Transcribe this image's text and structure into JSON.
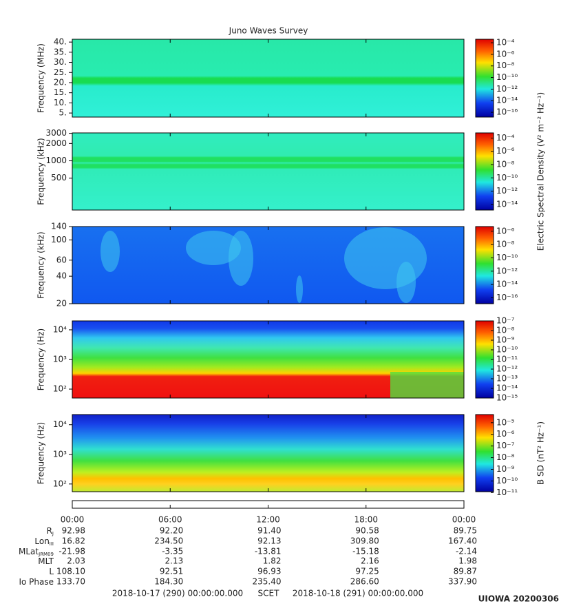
{
  "chart_data": [
    {
      "type": "spectrogram",
      "title": "Juno Waves Survey",
      "ylabel": "Frequency (MHz)",
      "ylim": [
        3,
        41.4
      ],
      "log_y": false,
      "yticks": [
        {
          "value": 5,
          "label": "5."
        },
        {
          "value": 10,
          "label": "10."
        },
        {
          "value": 15,
          "label": "15."
        },
        {
          "value": 20,
          "label": "20."
        },
        {
          "value": 25,
          "label": "25."
        },
        {
          "value": 30,
          "label": "30."
        },
        {
          "value": 35,
          "label": "35."
        },
        {
          "value": 40,
          "label": "40."
        }
      ],
      "clim": [
        1.5e-17,
        0.0004
      ],
      "cticks": [
        {
          "value": 0.0001,
          "label": "10⁻⁴"
        },
        {
          "value": 1e-06,
          "label": "10⁻⁶"
        },
        {
          "value": 1e-08,
          "label": "10⁻⁸"
        },
        {
          "value": 1e-10,
          "label": "10⁻¹⁰"
        },
        {
          "value": 1e-12,
          "label": "10⁻¹²"
        },
        {
          "value": 1e-14,
          "label": "10⁻¹⁴"
        },
        {
          "value": 1e-16,
          "label": "10⁻¹⁶"
        }
      ]
    },
    {
      "type": "spectrogram",
      "ylabel": "Frequency (kHz)",
      "ylim": [
        140,
        3050
      ],
      "log_y": true,
      "yticks": [
        500,
        1000,
        2000,
        3000
      ],
      "clim": [
        1.4e-15,
        0.0006
      ],
      "cticks": [
        {
          "value": 0.0001,
          "label": "10⁻⁴"
        },
        {
          "value": 1e-06,
          "label": "10⁻⁶"
        },
        {
          "value": 1e-08,
          "label": "10⁻⁸"
        },
        {
          "value": 1e-10,
          "label": "10⁻¹⁰"
        },
        {
          "value": 1e-12,
          "label": "10⁻¹²"
        },
        {
          "value": 1e-14,
          "label": "10⁻¹⁴"
        }
      ],
      "colorbar_label": "Electric Spectral Density (V² m⁻² Hz⁻¹)"
    },
    {
      "type": "spectrogram",
      "ylabel": "Frequency (kHz)",
      "ylim": [
        20,
        140
      ],
      "log_y": true,
      "yticks": [
        20,
        40,
        60,
        100,
        140
      ],
      "clim": [
        1.3e-17,
        5e-06
      ],
      "cticks": [
        {
          "value": 1e-06,
          "label": "10⁻⁶"
        },
        {
          "value": 1e-08,
          "label": "10⁻⁸"
        },
        {
          "value": 1e-10,
          "label": "10⁻¹⁰"
        },
        {
          "value": 1e-12,
          "label": "10⁻¹²"
        },
        {
          "value": 1e-14,
          "label": "10⁻¹⁴"
        },
        {
          "value": 1e-16,
          "label": "10⁻¹⁶"
        }
      ]
    },
    {
      "type": "spectrogram",
      "ylabel": "Frequency (Hz)",
      "ylim": [
        50,
        20000
      ],
      "log_y": true,
      "yticks": [
        {
          "value": 100,
          "label": "10²"
        },
        {
          "value": 1000,
          "label": "10³"
        },
        {
          "value": 10000,
          "label": "10⁴"
        }
      ],
      "clim": [
        1e-15,
        1e-07
      ],
      "cticks": [
        {
          "value": 1e-07,
          "label": "10⁻⁷"
        },
        {
          "value": 1e-08,
          "label": "10⁻⁸"
        },
        {
          "value": 1e-09,
          "label": "10⁻⁹"
        },
        {
          "value": 1e-10,
          "label": "10⁻¹⁰"
        },
        {
          "value": 1e-11,
          "label": "10⁻¹¹"
        },
        {
          "value": 1e-12,
          "label": "10⁻¹²"
        },
        {
          "value": 1e-13,
          "label": "10⁻¹³"
        },
        {
          "value": 1e-14,
          "label": "10⁻¹⁴"
        },
        {
          "value": 1e-15,
          "label": "10⁻¹⁵"
        }
      ]
    },
    {
      "type": "spectrogram",
      "ylabel": "Frequency (Hz)",
      "ylim": [
        55,
        22000
      ],
      "log_y": true,
      "yticks": [
        {
          "value": 100,
          "label": "10²"
        },
        {
          "value": 1000,
          "label": "10³"
        },
        {
          "value": 10000,
          "label": "10⁴"
        }
      ],
      "clim": [
        1.2e-11,
        5e-05
      ],
      "cticks": [
        {
          "value": 1e-05,
          "label": "10⁻⁵"
        },
        {
          "value": 1e-06,
          "label": "10⁻⁶"
        },
        {
          "value": 1e-07,
          "label": "10⁻⁷"
        },
        {
          "value": 1e-08,
          "label": "10⁻⁸"
        },
        {
          "value": 1e-09,
          "label": "10⁻⁹"
        },
        {
          "value": 1e-10,
          "label": "10⁻¹⁰"
        },
        {
          "value": 1e-11,
          "label": "10⁻¹¹"
        }
      ],
      "colorbar_label": "B SD (nT² Hz⁻¹)"
    }
  ],
  "time_axis": {
    "xlim": [
      0,
      24
    ],
    "xticks": [
      {
        "value": 0,
        "label": "00:00"
      },
      {
        "value": 6,
        "label": "06:00"
      },
      {
        "value": 12,
        "label": "12:00"
      },
      {
        "value": 18,
        "label": "18:00"
      },
      {
        "value": 24,
        "label": "00:00"
      }
    ]
  },
  "ephemeris": {
    "rows": [
      {
        "label": "R",
        "sub": "J",
        "values": [
          "92.98",
          "92.20",
          "91.40",
          "90.58",
          "89.75"
        ]
      },
      {
        "label": "Lon",
        "sub": "III",
        "values": [
          "16.82",
          "234.50",
          "92.13",
          "309.80",
          "167.40"
        ]
      },
      {
        "label": "MLat",
        "sub": "JRM09",
        "values": [
          "-21.98",
          "-3.35",
          "-13.81",
          "-15.18",
          "-2.14"
        ]
      },
      {
        "label": "MLT",
        "values": [
          "2.03",
          "2.13",
          "1.82",
          "2.16",
          "1.98"
        ]
      },
      {
        "label": "L",
        "values": [
          "108.10",
          "92.51",
          "96.93",
          "97.25",
          "89.87"
        ]
      },
      {
        "label": "Io Phase",
        "values": [
          "133.70",
          "184.30",
          "235.40",
          "286.60",
          "337.90"
        ]
      }
    ]
  },
  "footer": {
    "start": "2018-10-17 (290) 00:00:00.000",
    "center": "SCET",
    "end": "2018-10-18 (291) 00:00:00.000",
    "stamp": "UIOWA 20200306"
  }
}
